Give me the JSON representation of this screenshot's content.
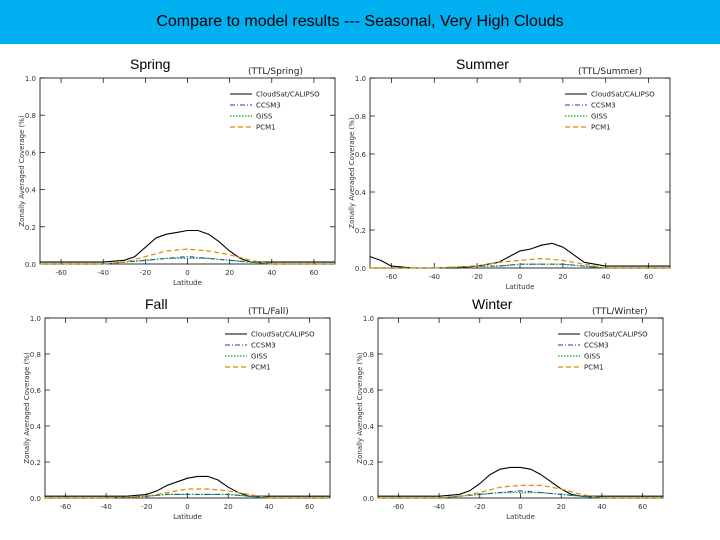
{
  "page": {
    "title": "Compare to model results --- Seasonal, Very High Clouds"
  },
  "colors": {
    "header_bg": "#00b0f0",
    "calipso": "#000000",
    "ccsm3": "#1a3fb0",
    "giss": "#1a9a3a",
    "pcm1": "#e08a00"
  },
  "chart_data": [
    {
      "type": "line",
      "season": "Spring",
      "plot_title": "(TTL/Spring)",
      "xlabel": "Latitude",
      "ylabel": "Zonally Averaged Coverage (%)",
      "xlim": [
        -70,
        70
      ],
      "ylim": [
        0,
        1.0
      ],
      "xticks": [
        "-60",
        "-40",
        "-20",
        "0",
        "20",
        "40",
        "60"
      ],
      "yticks": [
        "0.0",
        "0.2",
        "0.4",
        "0.6",
        "0.8",
        "1.0"
      ],
      "legend": [
        "CloudSat/CALIPSO",
        "CCSM3",
        "GISS",
        "PCM1"
      ],
      "series": [
        {
          "name": "CloudSat/CALIPSO",
          "x": [
            -70,
            -40,
            -30,
            -25,
            -20,
            -15,
            -10,
            -5,
            0,
            5,
            10,
            15,
            20,
            25,
            30,
            40,
            70
          ],
          "y": [
            0.01,
            0.01,
            0.02,
            0.04,
            0.09,
            0.14,
            0.16,
            0.17,
            0.18,
            0.18,
            0.16,
            0.12,
            0.07,
            0.03,
            0.01,
            0.01,
            0.01
          ]
        },
        {
          "name": "CCSM3",
          "x": [
            -70,
            -40,
            -30,
            -20,
            -10,
            0,
            10,
            20,
            30,
            40,
            70
          ],
          "y": [
            0.0,
            0.0,
            0.01,
            0.02,
            0.03,
            0.04,
            0.03,
            0.02,
            0.01,
            0.0,
            0.0
          ]
        },
        {
          "name": "GISS",
          "x": [
            -70,
            -40,
            -30,
            -20,
            -10,
            0,
            10,
            20,
            30,
            40,
            70
          ],
          "y": [
            0.0,
            0.0,
            0.01,
            0.02,
            0.03,
            0.03,
            0.03,
            0.02,
            0.01,
            0.0,
            0.0
          ]
        },
        {
          "name": "PCM1",
          "x": [
            -70,
            -40,
            -30,
            -20,
            -10,
            0,
            10,
            20,
            30,
            40,
            70
          ],
          "y": [
            0.0,
            0.0,
            0.01,
            0.04,
            0.07,
            0.08,
            0.07,
            0.05,
            0.02,
            0.0,
            0.0
          ]
        }
      ]
    },
    {
      "type": "line",
      "season": "Summer",
      "plot_title": "(TTL/Summer)",
      "xlabel": "Latitude",
      "ylabel": "Zonally Averaged Coverage (%)",
      "xlim": [
        -70,
        70
      ],
      "ylim": [
        0,
        1.0
      ],
      "xticks": [
        "-60",
        "-40",
        "-20",
        "0",
        "20",
        "40",
        "60"
      ],
      "yticks": [
        "0.0",
        "0.2",
        "0.4",
        "0.6",
        "0.8",
        "1.0"
      ],
      "legend": [
        "CloudSat/CALIPSO",
        "CCSM3",
        "GISS",
        "PCM1"
      ],
      "series": [
        {
          "name": "CloudSat/CALIPSO",
          "x": [
            -70,
            -65,
            -60,
            -50,
            -40,
            -30,
            -20,
            -10,
            -5,
            0,
            5,
            10,
            15,
            20,
            25,
            30,
            40,
            70
          ],
          "y": [
            0.06,
            0.04,
            0.01,
            0.0,
            0.0,
            0.0,
            0.01,
            0.03,
            0.06,
            0.09,
            0.1,
            0.12,
            0.13,
            0.11,
            0.07,
            0.03,
            0.01,
            0.01
          ]
        },
        {
          "name": "CCSM3",
          "x": [
            -70,
            -40,
            -20,
            -10,
            0,
            10,
            20,
            30,
            40,
            70
          ],
          "y": [
            0.0,
            0.0,
            0.01,
            0.01,
            0.02,
            0.02,
            0.02,
            0.01,
            0.0,
            0.0
          ]
        },
        {
          "name": "GISS",
          "x": [
            -70,
            -40,
            -20,
            -10,
            0,
            10,
            20,
            30,
            40,
            70
          ],
          "y": [
            0.0,
            0.0,
            0.01,
            0.01,
            0.02,
            0.02,
            0.02,
            0.01,
            0.0,
            0.0
          ]
        },
        {
          "name": "PCM1",
          "x": [
            -70,
            -40,
            -20,
            -10,
            0,
            10,
            20,
            30,
            40,
            70
          ],
          "y": [
            0.0,
            0.0,
            0.01,
            0.03,
            0.04,
            0.05,
            0.04,
            0.02,
            0.0,
            0.0
          ]
        }
      ]
    },
    {
      "type": "line",
      "season": "Fall",
      "plot_title": "(TTL/Fall)",
      "xlabel": "Latitude",
      "ylabel": "Zonally Averaged Coverage (%)",
      "xlim": [
        -70,
        70
      ],
      "ylim": [
        0,
        1.0
      ],
      "xticks": [
        "-60",
        "-40",
        "-20",
        "0",
        "20",
        "40",
        "60"
      ],
      "yticks": [
        "0.0",
        "0.2",
        "0.4",
        "0.6",
        "0.8",
        "1.0"
      ],
      "legend": [
        "CloudSat/CALIPSO",
        "CCSM3",
        "GISS",
        "PCM1"
      ],
      "series": [
        {
          "name": "CloudSat/CALIPSO",
          "x": [
            -70,
            -40,
            -30,
            -20,
            -15,
            -10,
            -5,
            0,
            5,
            10,
            15,
            20,
            25,
            30,
            40,
            70
          ],
          "y": [
            0.01,
            0.01,
            0.01,
            0.02,
            0.04,
            0.07,
            0.09,
            0.11,
            0.12,
            0.12,
            0.1,
            0.06,
            0.03,
            0.01,
            0.01,
            0.01
          ]
        },
        {
          "name": "CCSM3",
          "x": [
            -70,
            -40,
            -20,
            -10,
            0,
            10,
            20,
            30,
            40,
            70
          ],
          "y": [
            0.0,
            0.0,
            0.01,
            0.02,
            0.02,
            0.02,
            0.02,
            0.01,
            0.0,
            0.0
          ]
        },
        {
          "name": "GISS",
          "x": [
            -70,
            -40,
            -20,
            -10,
            0,
            10,
            20,
            30,
            40,
            70
          ],
          "y": [
            0.0,
            0.0,
            0.01,
            0.02,
            0.02,
            0.02,
            0.02,
            0.01,
            0.0,
            0.0
          ]
        },
        {
          "name": "PCM1",
          "x": [
            -70,
            -40,
            -20,
            -10,
            0,
            10,
            20,
            30,
            40,
            70
          ],
          "y": [
            0.0,
            0.0,
            0.01,
            0.03,
            0.05,
            0.05,
            0.04,
            0.02,
            0.0,
            0.0
          ]
        }
      ]
    },
    {
      "type": "line",
      "season": "Winter",
      "plot_title": "(TTL/Winter)",
      "xlabel": "Latitude",
      "ylabel": "Zonally Averaged Coverage (%)",
      "xlim": [
        -70,
        70
      ],
      "ylim": [
        0,
        1.0
      ],
      "xticks": [
        "-60",
        "-40",
        "-20",
        "0",
        "20",
        "40",
        "60"
      ],
      "yticks": [
        "0.0",
        "0.2",
        "0.4",
        "0.6",
        "0.8",
        "1.0"
      ],
      "legend": [
        "CloudSat/CALIPSO",
        "CCSM3",
        "GISS",
        "PCM1"
      ],
      "series": [
        {
          "name": "CloudSat/CALIPSO",
          "x": [
            -70,
            -40,
            -30,
            -25,
            -20,
            -15,
            -10,
            -5,
            0,
            5,
            10,
            15,
            20,
            25,
            30,
            40,
            70
          ],
          "y": [
            0.01,
            0.01,
            0.02,
            0.04,
            0.08,
            0.13,
            0.16,
            0.17,
            0.17,
            0.16,
            0.13,
            0.09,
            0.05,
            0.02,
            0.01,
            0.01,
            0.01
          ]
        },
        {
          "name": "CCSM3",
          "x": [
            -70,
            -40,
            -30,
            -20,
            -10,
            0,
            10,
            20,
            30,
            40,
            70
          ],
          "y": [
            0.0,
            0.0,
            0.01,
            0.02,
            0.03,
            0.04,
            0.03,
            0.02,
            0.01,
            0.0,
            0.0
          ]
        },
        {
          "name": "GISS",
          "x": [
            -70,
            -40,
            -30,
            -20,
            -10,
            0,
            10,
            20,
            30,
            40,
            70
          ],
          "y": [
            0.0,
            0.0,
            0.01,
            0.02,
            0.03,
            0.03,
            0.03,
            0.02,
            0.01,
            0.0,
            0.0
          ]
        },
        {
          "name": "PCM1",
          "x": [
            -70,
            -40,
            -30,
            -20,
            -10,
            0,
            10,
            20,
            30,
            40,
            70
          ],
          "y": [
            0.0,
            0.0,
            0.01,
            0.03,
            0.06,
            0.07,
            0.07,
            0.05,
            0.02,
            0.0,
            0.0
          ]
        }
      ]
    }
  ]
}
